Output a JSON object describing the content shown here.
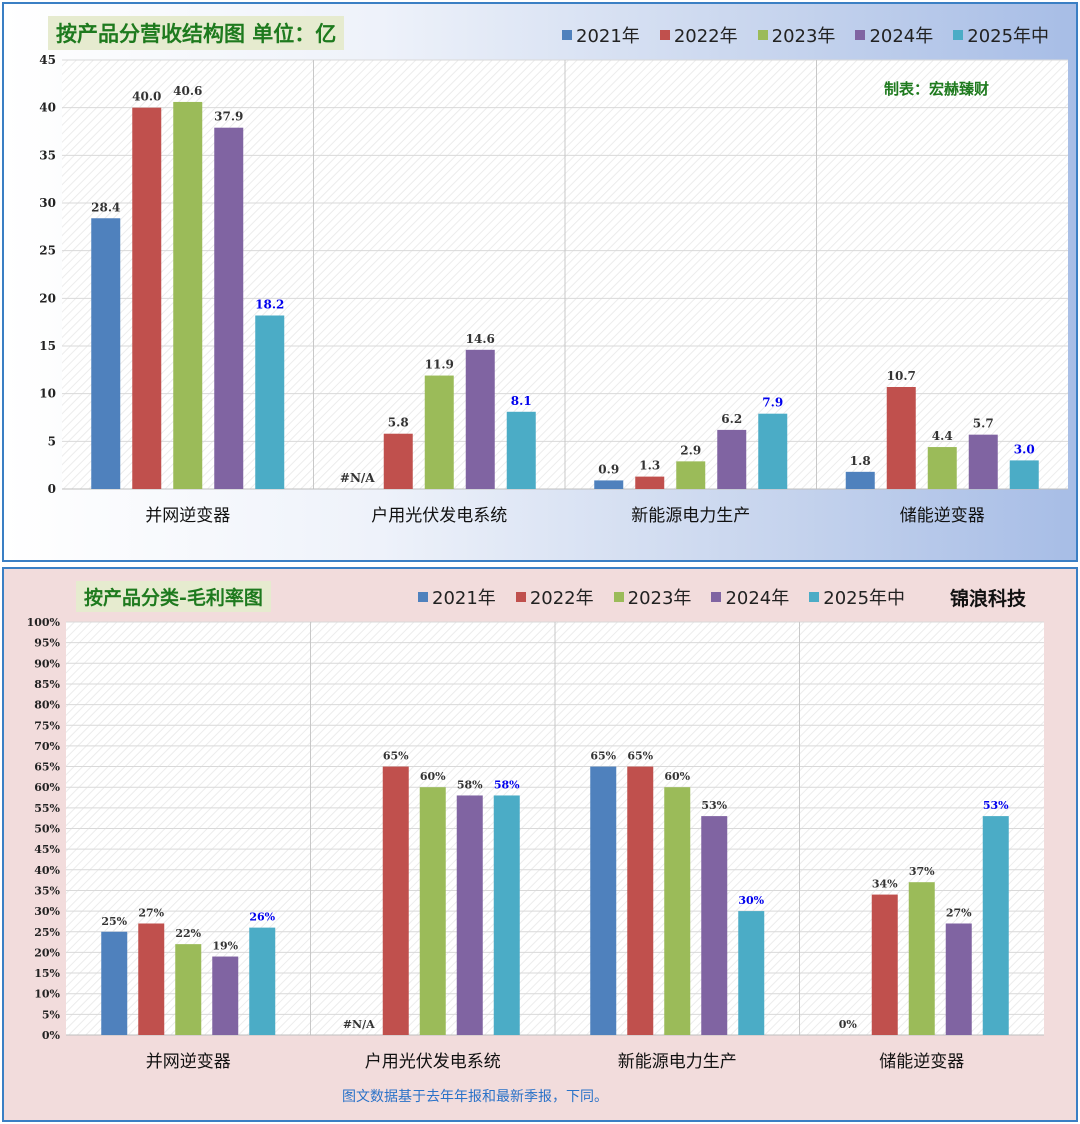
{
  "colors": {
    "2021": "#4f81bd",
    "2022": "#c0504d",
    "2023": "#9bbb59",
    "2024": "#8064a2",
    "2025": "#4bacc6",
    "highlight_label": "#0000ee"
  },
  "legend": [
    "2021年",
    "2022年",
    "2023年",
    "2024年",
    "2025年中"
  ],
  "top": {
    "title": "按产品分营收结构图 单位：亿",
    "maker": "制表：宏赫臻财"
  },
  "bottom": {
    "title": "按产品分类-毛利率图",
    "brand": "锦浪科技",
    "footnote": "图文数据基于去年年报和最新季报，下同。"
  },
  "chart_data": [
    {
      "type": "bar",
      "title": "按产品分营收结构图 单位：亿",
      "categories": [
        "并网逆变器",
        "户用光伏发电系统",
        "新能源电力生产",
        "储能逆变器"
      ],
      "ylim": [
        0,
        45
      ],
      "yticks": [
        0,
        5,
        10,
        15,
        20,
        25,
        30,
        35,
        40,
        45
      ],
      "grid": true,
      "legend_position": "top-right",
      "series": [
        {
          "name": "2021年",
          "values": [
            28.4,
            null,
            0.9,
            1.8
          ],
          "labels": [
            "28.4",
            "#N/A",
            "0.9",
            "1.8"
          ]
        },
        {
          "name": "2022年",
          "values": [
            40.0,
            5.8,
            1.3,
            10.7
          ],
          "labels": [
            "40.0",
            "5.8",
            "1.3",
            "10.7"
          ]
        },
        {
          "name": "2023年",
          "values": [
            40.6,
            11.9,
            2.9,
            4.4
          ],
          "labels": [
            "40.6",
            "11.9",
            "2.9",
            "4.4"
          ]
        },
        {
          "name": "2024年",
          "values": [
            37.9,
            14.6,
            6.2,
            5.7
          ],
          "labels": [
            "37.9",
            "14.6",
            "6.2",
            "5.7"
          ]
        },
        {
          "name": "2025年中",
          "values": [
            18.2,
            8.1,
            7.9,
            3.0
          ],
          "labels": [
            "18.2",
            "8.1",
            "7.9",
            "3.0"
          ]
        }
      ]
    },
    {
      "type": "bar",
      "title": "按产品分类-毛利率图",
      "categories": [
        "并网逆变器",
        "户用光伏发电系统",
        "新能源电力生产",
        "储能逆变器"
      ],
      "ylim": [
        0,
        100
      ],
      "yticks": [
        "0%",
        "5%",
        "10%",
        "15%",
        "20%",
        "25%",
        "30%",
        "35%",
        "40%",
        "45%",
        "50%",
        "55%",
        "60%",
        "65%",
        "70%",
        "75%",
        "80%",
        "85%",
        "90%",
        "95%",
        "100%"
      ],
      "grid": true,
      "legend_position": "top-right",
      "series": [
        {
          "name": "2021年",
          "values": [
            25,
            null,
            65,
            0
          ],
          "labels": [
            "25%",
            "#N/A",
            "65%",
            "0%"
          ]
        },
        {
          "name": "2022年",
          "values": [
            27,
            65,
            65,
            34
          ],
          "labels": [
            "27%",
            "65%",
            "65%",
            "34%"
          ]
        },
        {
          "name": "2023年",
          "values": [
            22,
            60,
            60,
            37
          ],
          "labels": [
            "22%",
            "60%",
            "60%",
            "37%"
          ]
        },
        {
          "name": "2024年",
          "values": [
            19,
            58,
            53,
            27
          ],
          "labels": [
            "19%",
            "58%",
            "53%",
            "27%"
          ]
        },
        {
          "name": "2025年中",
          "values": [
            26,
            58,
            30,
            53
          ],
          "labels": [
            "26%",
            "58%",
            "30%",
            "53%"
          ]
        }
      ]
    }
  ]
}
